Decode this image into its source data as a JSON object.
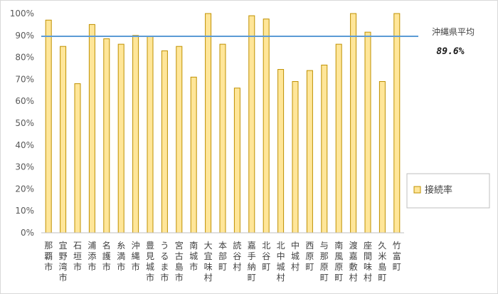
{
  "chart_data": {
    "type": "bar",
    "categories": [
      "那覇市",
      "宜野湾市",
      "石垣市",
      "浦添市",
      "名護市",
      "糸満市",
      "沖縄市",
      "豊見城市",
      "うるま市",
      "宮古島市",
      "南城市",
      "大宜味村",
      "本部町",
      "読谷村",
      "嘉手納町",
      "北谷町",
      "北中城村",
      "中城村",
      "西原町",
      "与那原町",
      "南風原町",
      "渡嘉敷村",
      "座間味村",
      "久米島町",
      "竹富町"
    ],
    "series": [
      {
        "name": "接続率",
        "color": "#ffe699",
        "stroke": "#bf9000",
        "values": [
          97,
          85,
          68,
          95,
          88.5,
          86,
          90,
          89.5,
          83,
          85,
          71,
          100,
          86,
          66,
          99,
          97.5,
          74.5,
          69,
          74,
          76.5,
          86,
          100,
          91.5,
          69,
          100
        ]
      }
    ],
    "ylim": [
      0,
      100
    ],
    "yticks": [
      "0%",
      "10%",
      "20%",
      "30%",
      "40%",
      "50%",
      "60%",
      "70%",
      "80%",
      "90%",
      "100%"
    ],
    "title": "",
    "xlabel": "",
    "ylabel": "",
    "grid": false,
    "legend_position": "right",
    "reference_line": {
      "label": "沖縄県平均",
      "value_label": "89.6%",
      "value": 89.6,
      "color": "#5b9bd5"
    }
  }
}
